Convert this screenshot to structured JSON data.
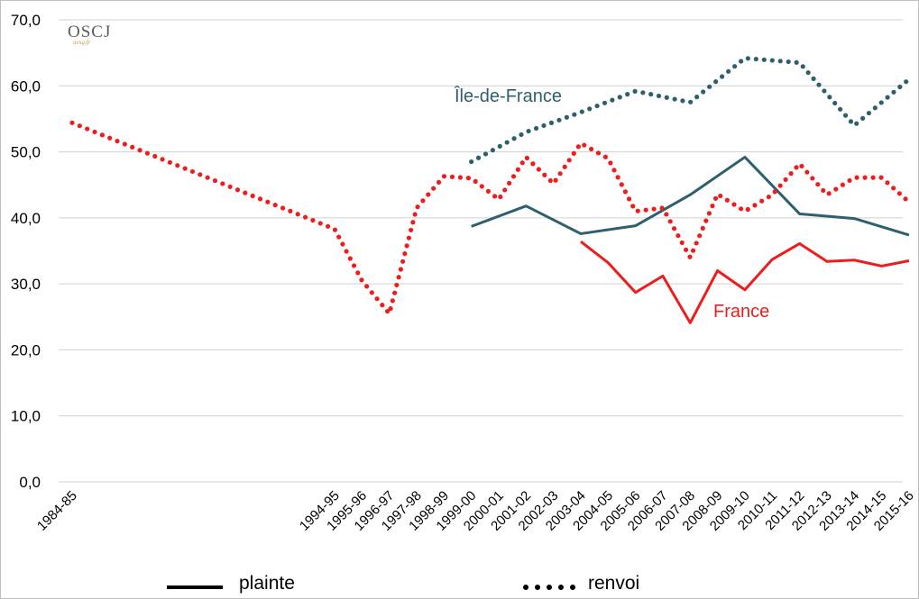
{
  "logo": {
    "text": "OSCJ",
    "subtext": "uvsq.fr"
  },
  "chart_data": {
    "type": "line",
    "ylim": [
      0,
      70
    ],
    "y_ticks": [
      "0,0",
      "10,0",
      "20,0",
      "30,0",
      "40,0",
      "50,0",
      "60,0",
      "70,0"
    ],
    "grid": "horizontal",
    "categories": [
      "1984-85",
      "1994-95",
      "1995-96",
      "1996-97",
      "1997-98",
      "1998-99",
      "1999-00",
      "2000-01",
      "2001-02",
      "2002-03",
      "2003-04",
      "2004-05",
      "2005-06",
      "2006-07",
      "2007-08",
      "2008-09",
      "2009-10",
      "2010-11",
      "2011-12",
      "2012-13",
      "2013-14",
      "2014-15",
      "2015-16"
    ],
    "series": [
      {
        "name": "Île-de-France",
        "kind": "plainte",
        "color": "#2e5f6e",
        "values": [
          null,
          null,
          null,
          null,
          null,
          null,
          38.7,
          null,
          41.8,
          null,
          37.6,
          null,
          38.8,
          null,
          43.5,
          null,
          49.2,
          null,
          40.6,
          null,
          39.9,
          null,
          37.4
        ]
      },
      {
        "name": "Île-de-France",
        "kind": "renvoi",
        "color": "#2e5f6e",
        "values": [
          null,
          null,
          null,
          null,
          null,
          null,
          48.5,
          null,
          53.0,
          null,
          56.0,
          null,
          59.2,
          null,
          57.5,
          null,
          64.2,
          null,
          63.5,
          null,
          54.0,
          null,
          61.0
        ]
      },
      {
        "name": "France",
        "kind": "plainte",
        "color": "#ee1c1c",
        "values": [
          null,
          null,
          null,
          null,
          null,
          null,
          null,
          null,
          null,
          null,
          36.4,
          33.2,
          28.7,
          31.2,
          24.1,
          32.0,
          29.1,
          33.7,
          36.1,
          33.4,
          33.6,
          32.7,
          33.5
        ]
      },
      {
        "name": "France",
        "kind": "renvoi",
        "color": "#ee1c1c",
        "values": [
          54.4,
          38.3,
          30.5,
          25.5,
          41.5,
          46.3,
          46.0,
          42.8,
          49.2,
          45.2,
          51.3,
          49.0,
          41.0,
          41.5,
          34.0,
          43.6,
          41.0,
          43.5,
          48.2,
          43.5,
          46.1,
          46.1,
          42.4
        ]
      }
    ],
    "series_labels": {
      "idf": "Île-de-France",
      "france": "France"
    },
    "legend": {
      "position": "bottom",
      "plainte": "plainte",
      "renvoi": "renvoi"
    }
  }
}
